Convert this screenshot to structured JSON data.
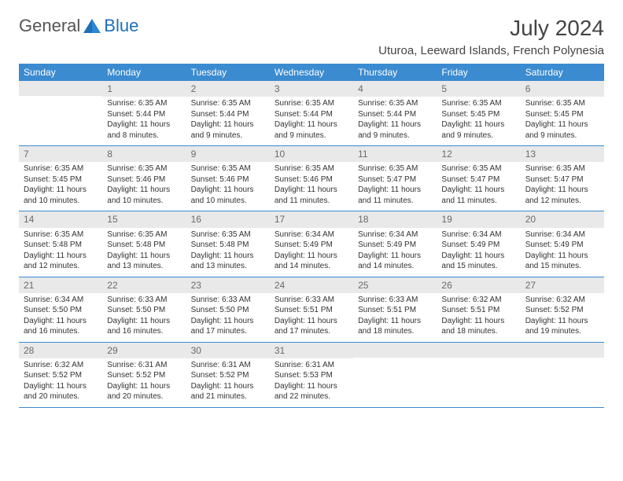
{
  "logo": {
    "text_general": "General",
    "text_blue": "Blue"
  },
  "header": {
    "month_title": "July 2024",
    "location": "Uturoa, Leeward Islands, French Polynesia"
  },
  "calendar": {
    "header_bg": "#3b8bd0",
    "header_text_color": "#ffffff",
    "daynum_bg": "#e9e9e9",
    "daynum_color": "#6a6a6a",
    "row_border_color": "#3b8bd0",
    "cell_font_size": 10,
    "day_headers": [
      "Sunday",
      "Monday",
      "Tuesday",
      "Wednesday",
      "Thursday",
      "Friday",
      "Saturday"
    ],
    "weeks": [
      [
        {
          "num": "",
          "sunrise": "",
          "sunset": "",
          "daylight": ""
        },
        {
          "num": "1",
          "sunrise": "Sunrise: 6:35 AM",
          "sunset": "Sunset: 5:44 PM",
          "daylight": "Daylight: 11 hours and 8 minutes."
        },
        {
          "num": "2",
          "sunrise": "Sunrise: 6:35 AM",
          "sunset": "Sunset: 5:44 PM",
          "daylight": "Daylight: 11 hours and 9 minutes."
        },
        {
          "num": "3",
          "sunrise": "Sunrise: 6:35 AM",
          "sunset": "Sunset: 5:44 PM",
          "daylight": "Daylight: 11 hours and 9 minutes."
        },
        {
          "num": "4",
          "sunrise": "Sunrise: 6:35 AM",
          "sunset": "Sunset: 5:44 PM",
          "daylight": "Daylight: 11 hours and 9 minutes."
        },
        {
          "num": "5",
          "sunrise": "Sunrise: 6:35 AM",
          "sunset": "Sunset: 5:45 PM",
          "daylight": "Daylight: 11 hours and 9 minutes."
        },
        {
          "num": "6",
          "sunrise": "Sunrise: 6:35 AM",
          "sunset": "Sunset: 5:45 PM",
          "daylight": "Daylight: 11 hours and 9 minutes."
        }
      ],
      [
        {
          "num": "7",
          "sunrise": "Sunrise: 6:35 AM",
          "sunset": "Sunset: 5:45 PM",
          "daylight": "Daylight: 11 hours and 10 minutes."
        },
        {
          "num": "8",
          "sunrise": "Sunrise: 6:35 AM",
          "sunset": "Sunset: 5:46 PM",
          "daylight": "Daylight: 11 hours and 10 minutes."
        },
        {
          "num": "9",
          "sunrise": "Sunrise: 6:35 AM",
          "sunset": "Sunset: 5:46 PM",
          "daylight": "Daylight: 11 hours and 10 minutes."
        },
        {
          "num": "10",
          "sunrise": "Sunrise: 6:35 AM",
          "sunset": "Sunset: 5:46 PM",
          "daylight": "Daylight: 11 hours and 11 minutes."
        },
        {
          "num": "11",
          "sunrise": "Sunrise: 6:35 AM",
          "sunset": "Sunset: 5:47 PM",
          "daylight": "Daylight: 11 hours and 11 minutes."
        },
        {
          "num": "12",
          "sunrise": "Sunrise: 6:35 AM",
          "sunset": "Sunset: 5:47 PM",
          "daylight": "Daylight: 11 hours and 11 minutes."
        },
        {
          "num": "13",
          "sunrise": "Sunrise: 6:35 AM",
          "sunset": "Sunset: 5:47 PM",
          "daylight": "Daylight: 11 hours and 12 minutes."
        }
      ],
      [
        {
          "num": "14",
          "sunrise": "Sunrise: 6:35 AM",
          "sunset": "Sunset: 5:48 PM",
          "daylight": "Daylight: 11 hours and 12 minutes."
        },
        {
          "num": "15",
          "sunrise": "Sunrise: 6:35 AM",
          "sunset": "Sunset: 5:48 PM",
          "daylight": "Daylight: 11 hours and 13 minutes."
        },
        {
          "num": "16",
          "sunrise": "Sunrise: 6:35 AM",
          "sunset": "Sunset: 5:48 PM",
          "daylight": "Daylight: 11 hours and 13 minutes."
        },
        {
          "num": "17",
          "sunrise": "Sunrise: 6:34 AM",
          "sunset": "Sunset: 5:49 PM",
          "daylight": "Daylight: 11 hours and 14 minutes."
        },
        {
          "num": "18",
          "sunrise": "Sunrise: 6:34 AM",
          "sunset": "Sunset: 5:49 PM",
          "daylight": "Daylight: 11 hours and 14 minutes."
        },
        {
          "num": "19",
          "sunrise": "Sunrise: 6:34 AM",
          "sunset": "Sunset: 5:49 PM",
          "daylight": "Daylight: 11 hours and 15 minutes."
        },
        {
          "num": "20",
          "sunrise": "Sunrise: 6:34 AM",
          "sunset": "Sunset: 5:49 PM",
          "daylight": "Daylight: 11 hours and 15 minutes."
        }
      ],
      [
        {
          "num": "21",
          "sunrise": "Sunrise: 6:34 AM",
          "sunset": "Sunset: 5:50 PM",
          "daylight": "Daylight: 11 hours and 16 minutes."
        },
        {
          "num": "22",
          "sunrise": "Sunrise: 6:33 AM",
          "sunset": "Sunset: 5:50 PM",
          "daylight": "Daylight: 11 hours and 16 minutes."
        },
        {
          "num": "23",
          "sunrise": "Sunrise: 6:33 AM",
          "sunset": "Sunset: 5:50 PM",
          "daylight": "Daylight: 11 hours and 17 minutes."
        },
        {
          "num": "24",
          "sunrise": "Sunrise: 6:33 AM",
          "sunset": "Sunset: 5:51 PM",
          "daylight": "Daylight: 11 hours and 17 minutes."
        },
        {
          "num": "25",
          "sunrise": "Sunrise: 6:33 AM",
          "sunset": "Sunset: 5:51 PM",
          "daylight": "Daylight: 11 hours and 18 minutes."
        },
        {
          "num": "26",
          "sunrise": "Sunrise: 6:32 AM",
          "sunset": "Sunset: 5:51 PM",
          "daylight": "Daylight: 11 hours and 18 minutes."
        },
        {
          "num": "27",
          "sunrise": "Sunrise: 6:32 AM",
          "sunset": "Sunset: 5:52 PM",
          "daylight": "Daylight: 11 hours and 19 minutes."
        }
      ],
      [
        {
          "num": "28",
          "sunrise": "Sunrise: 6:32 AM",
          "sunset": "Sunset: 5:52 PM",
          "daylight": "Daylight: 11 hours and 20 minutes."
        },
        {
          "num": "29",
          "sunrise": "Sunrise: 6:31 AM",
          "sunset": "Sunset: 5:52 PM",
          "daylight": "Daylight: 11 hours and 20 minutes."
        },
        {
          "num": "30",
          "sunrise": "Sunrise: 6:31 AM",
          "sunset": "Sunset: 5:52 PM",
          "daylight": "Daylight: 11 hours and 21 minutes."
        },
        {
          "num": "31",
          "sunrise": "Sunrise: 6:31 AM",
          "sunset": "Sunset: 5:53 PM",
          "daylight": "Daylight: 11 hours and 22 minutes."
        },
        {
          "num": "",
          "sunrise": "",
          "sunset": "",
          "daylight": ""
        },
        {
          "num": "",
          "sunrise": "",
          "sunset": "",
          "daylight": ""
        },
        {
          "num": "",
          "sunrise": "",
          "sunset": "",
          "daylight": ""
        }
      ]
    ]
  }
}
